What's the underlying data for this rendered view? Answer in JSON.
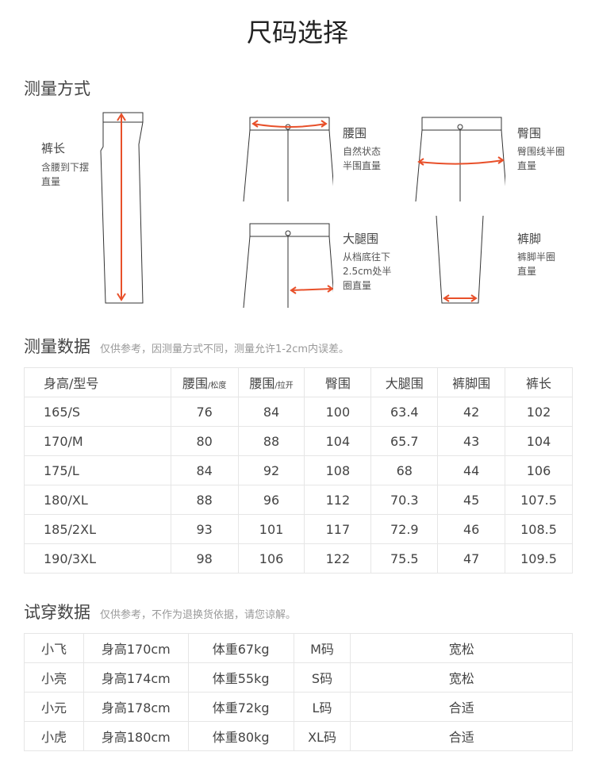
{
  "title": "尺码选择",
  "measure_method": {
    "heading": "测量方式",
    "items": [
      {
        "label": "裤长",
        "desc": [
          "含腰到下摆",
          "直量"
        ]
      },
      {
        "label": "腰围",
        "desc": [
          "自然状态",
          "半围直量"
        ]
      },
      {
        "label": "臀围",
        "desc": [
          "臀围线半圈",
          "直量"
        ]
      },
      {
        "label": "大腿围",
        "desc": [
          "从档底往下",
          "2.5cm处半",
          "圈直量"
        ]
      },
      {
        "label": "裤脚",
        "desc": [
          "裤脚半圈",
          "直量"
        ]
      }
    ],
    "arrow_color": "#e8502a"
  },
  "size_table": {
    "heading": "测量数据",
    "note": "仅供参考，因测量方式不同，测量允许1-2cm内误差。",
    "headers": [
      {
        "main": "身高/型号"
      },
      {
        "main": "腰围",
        "sub": "/松度"
      },
      {
        "main": "腰围",
        "sub": "/拉开"
      },
      {
        "main": "臀围"
      },
      {
        "main": "大腿围"
      },
      {
        "main": "裤脚围"
      },
      {
        "main": "裤长"
      }
    ],
    "rows": [
      [
        "165/S",
        "76",
        "84",
        "100",
        "63.4",
        "42",
        "102"
      ],
      [
        "170/M",
        "80",
        "88",
        "104",
        "65.7",
        "43",
        "104"
      ],
      [
        "175/L",
        "84",
        "92",
        "108",
        "68",
        "44",
        "106"
      ],
      [
        "180/XL",
        "88",
        "96",
        "112",
        "70.3",
        "45",
        "107.5"
      ],
      [
        "185/2XL",
        "93",
        "101",
        "117",
        "72.9",
        "46",
        "108.5"
      ],
      [
        "190/3XL",
        "98",
        "106",
        "122",
        "75.5",
        "47",
        "109.5"
      ]
    ]
  },
  "try_table": {
    "heading": "试穿数据",
    "note": "仅供参考，不作为退换货依据，请您谅解。",
    "rows": [
      [
        "小飞",
        "身高170cm",
        "体重67kg",
        "M码",
        "宽松"
      ],
      [
        "小亮",
        "身高174cm",
        "体重55kg",
        "S码",
        "宽松"
      ],
      [
        "小元",
        "身高178cm",
        "体重72kg",
        "L码",
        "合适"
      ],
      [
        "小虎",
        "身高180cm",
        "体重80kg",
        "XL码",
        "合适"
      ]
    ]
  }
}
